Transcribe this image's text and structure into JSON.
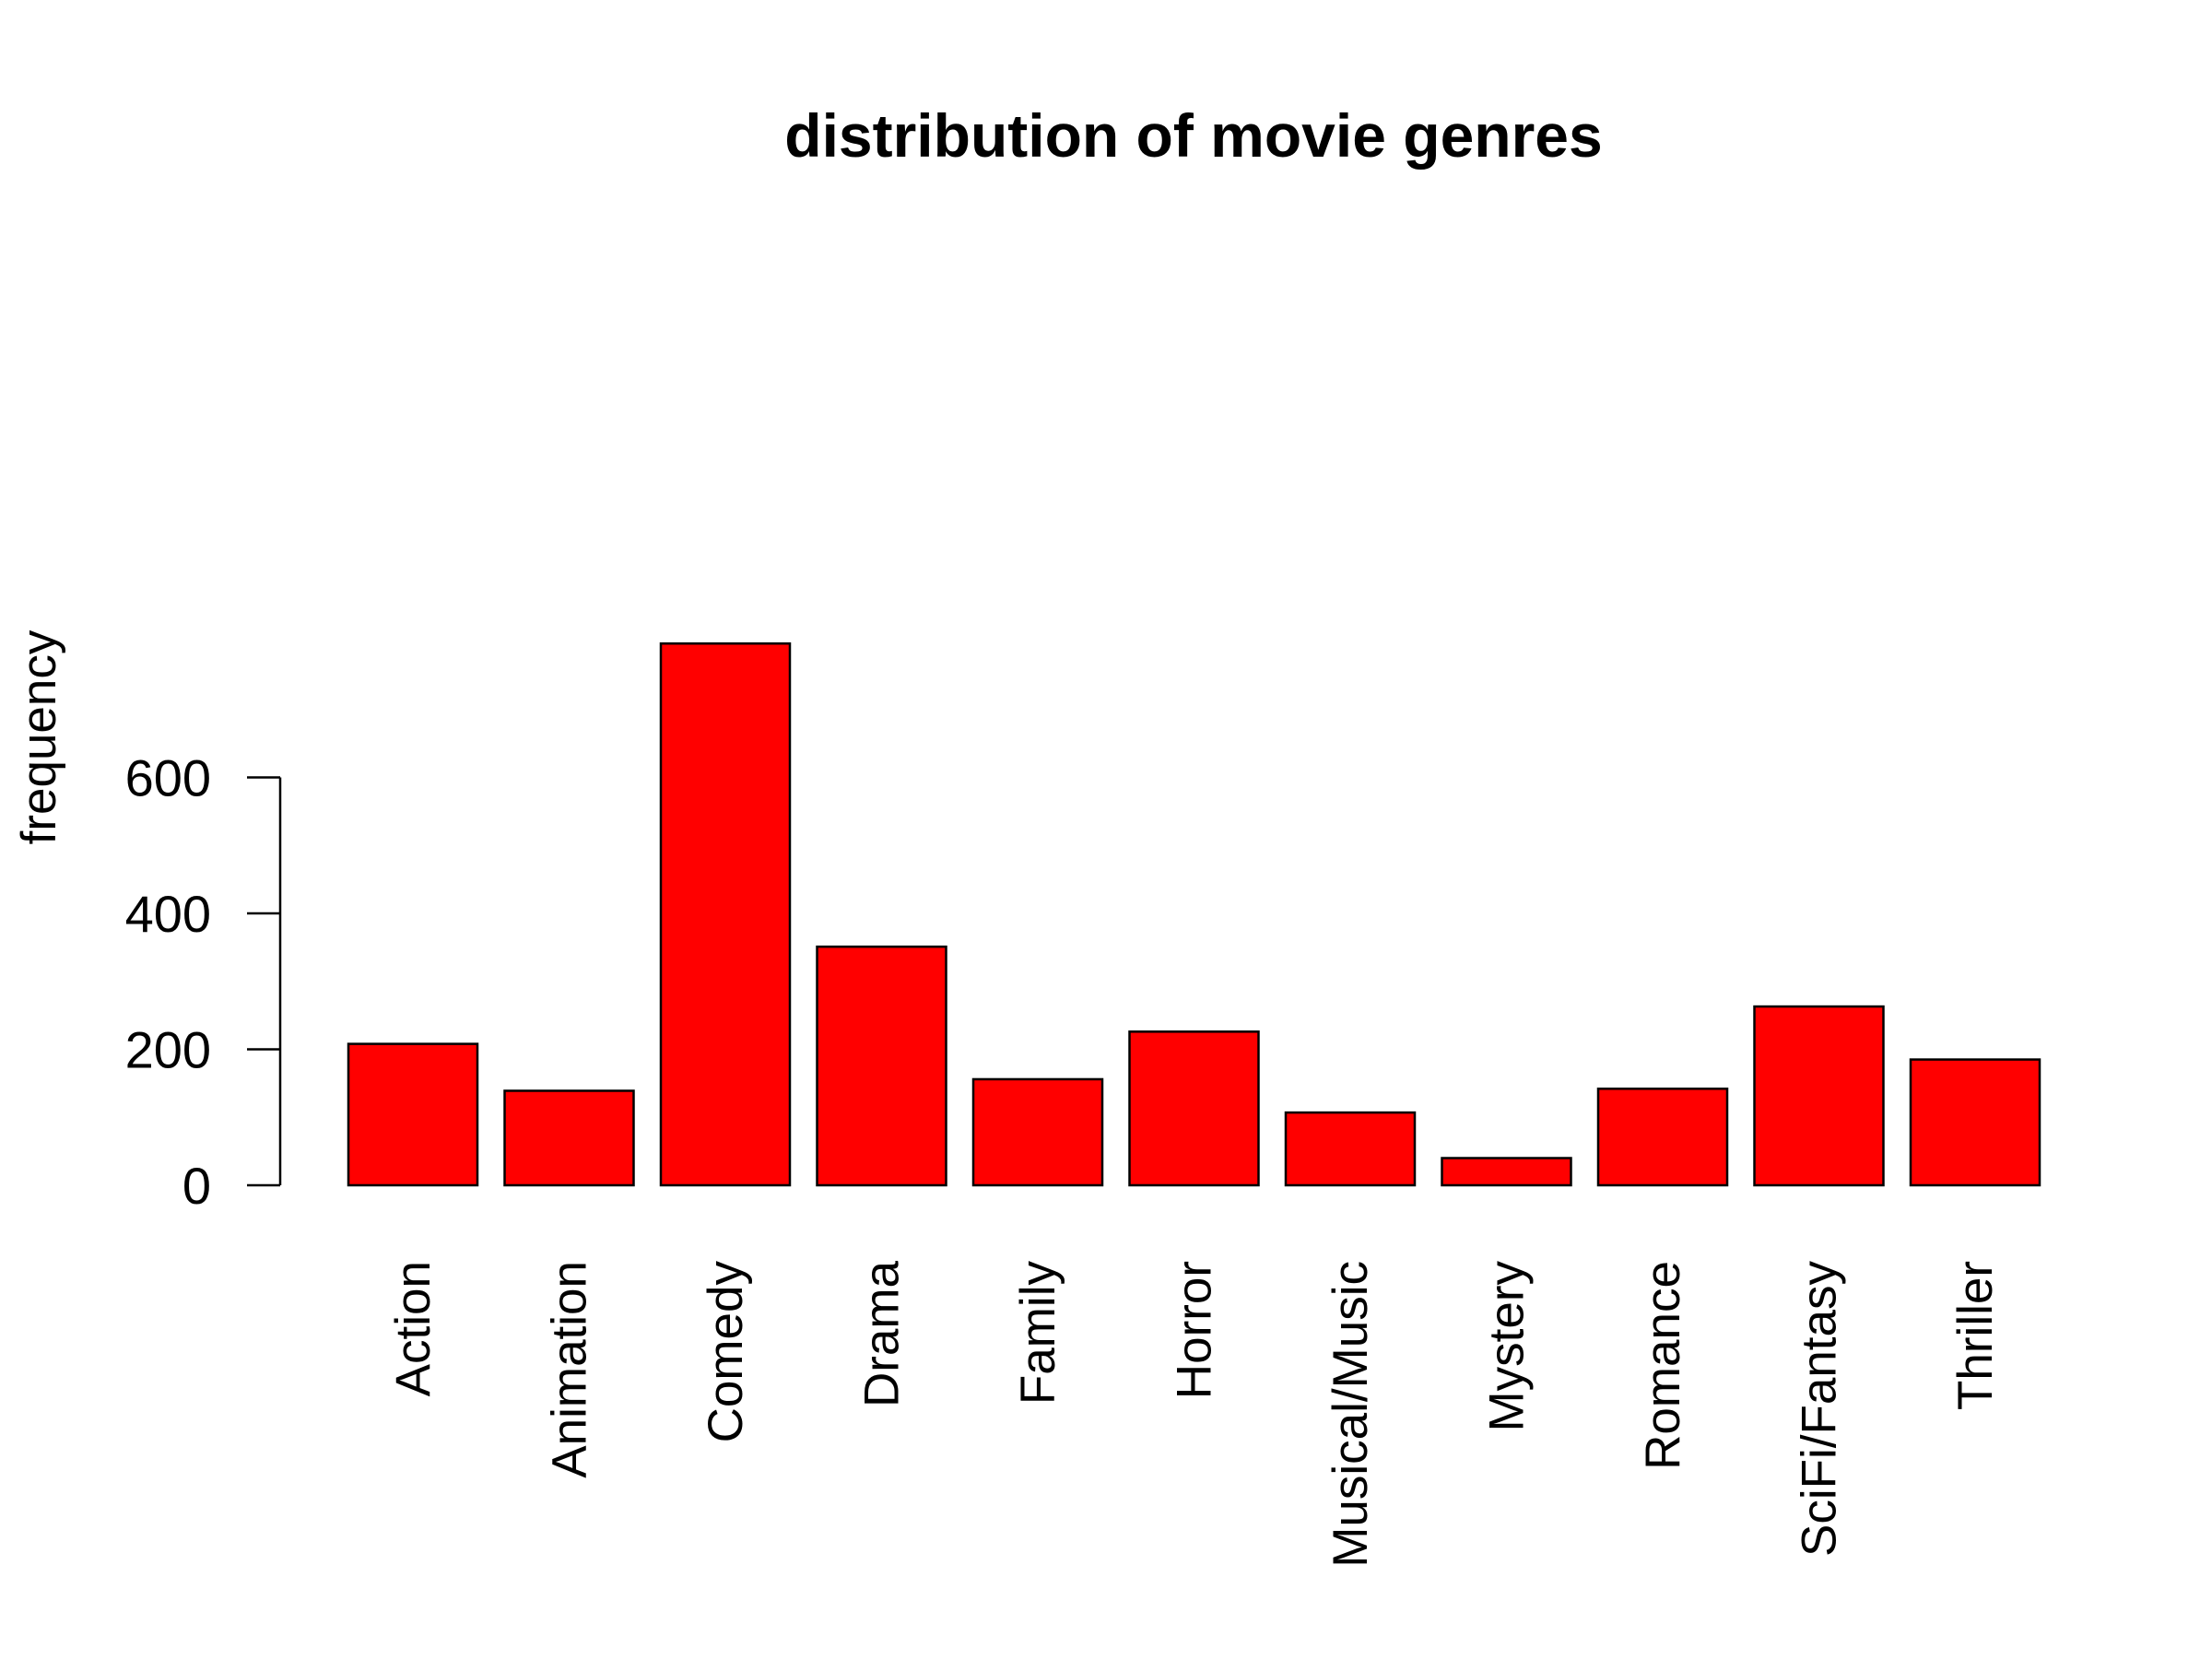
{
  "chart_data": {
    "type": "bar",
    "title": "distribution of movie genres",
    "xlabel": "",
    "ylabel": "frequency",
    "categories": [
      "Action",
      "Animation",
      "Comedy",
      "Drama",
      "Family",
      "Horror",
      "Musical/Music",
      "Mystery",
      "Romance",
      "SciFi/Fantasy",
      "Thriller"
    ],
    "values": [
      208,
      139,
      797,
      351,
      156,
      226,
      107,
      40,
      142,
      263,
      185
    ],
    "yticks": [
      0,
      200,
      400,
      600
    ],
    "ylim": [
      0,
      800
    ],
    "bar_color": "#ff0000",
    "grid": false,
    "legend": "none"
  }
}
